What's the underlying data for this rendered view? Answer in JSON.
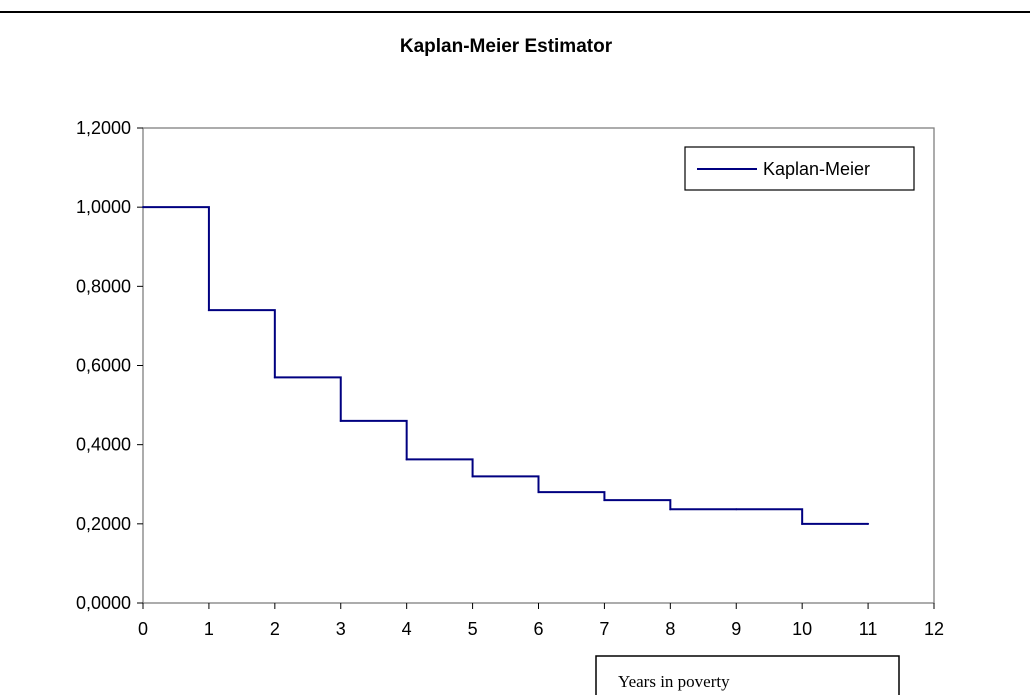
{
  "chart_data": {
    "type": "line",
    "step": true,
    "title": "Kaplan-Meier Estimator",
    "xlabel": "Years in poverty",
    "ylabel": "",
    "xlim": [
      0,
      12
    ],
    "ylim": [
      0,
      1.2
    ],
    "x_ticks": [
      0,
      1,
      2,
      3,
      4,
      5,
      6,
      7,
      8,
      9,
      10,
      11,
      12
    ],
    "y_ticks": [
      0,
      0.2,
      0.4,
      0.6,
      0.8,
      1.0,
      1.2
    ],
    "y_tick_labels": [
      "0,0000",
      "0,2000",
      "0,4000",
      "0,6000",
      "0,8000",
      "1,0000",
      "1,2000"
    ],
    "grid": false,
    "legend": "top-right",
    "series": [
      {
        "name": "Kaplan-Meier",
        "color": "#000080",
        "x": [
          0,
          1,
          2,
          3,
          4,
          5,
          6,
          7,
          8,
          9,
          10,
          11
        ],
        "values": [
          1.0,
          0.74,
          0.57,
          0.46,
          0.363,
          0.32,
          0.28,
          0.26,
          0.237,
          0.237,
          0.2,
          0.2
        ]
      }
    ]
  }
}
